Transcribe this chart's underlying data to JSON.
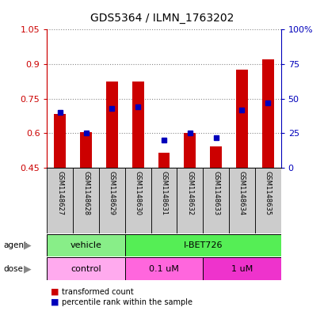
{
  "title": "GDS5364 / ILMN_1763202",
  "samples": [
    "GSM1148627",
    "GSM1148628",
    "GSM1148629",
    "GSM1148630",
    "GSM1148631",
    "GSM1148632",
    "GSM1148633",
    "GSM1148634",
    "GSM1148635"
  ],
  "transformed_count": [
    0.685,
    0.605,
    0.825,
    0.825,
    0.515,
    0.6,
    0.545,
    0.875,
    0.92
  ],
  "baseline": 0.45,
  "percentile_rank_norm": [
    0.4,
    0.25,
    0.43,
    0.44,
    0.2,
    0.25,
    0.22,
    0.42,
    0.47
  ],
  "ylim_left": [
    0.45,
    1.05
  ],
  "ylim_right": [
    0.0,
    1.0
  ],
  "yticks_left": [
    0.45,
    0.6,
    0.75,
    0.9,
    1.05
  ],
  "ytick_labels_left": [
    "0.45",
    "0.6",
    "0.75",
    "0.9",
    "1.05"
  ],
  "yticks_right": [
    0.0,
    0.25,
    0.5,
    0.75,
    1.0
  ],
  "ytick_labels_right": [
    "0",
    "25",
    "50",
    "75",
    "100%"
  ],
  "bar_color": "#cc0000",
  "percentile_color": "#0000bb",
  "agent_groups": [
    {
      "label": "vehicle",
      "start": 0,
      "end": 3,
      "color": "#88ee88"
    },
    {
      "label": "I-BET726",
      "start": 3,
      "end": 9,
      "color": "#55ee55"
    }
  ],
  "dose_groups": [
    {
      "label": "control",
      "start": 0,
      "end": 3,
      "color": "#ffaaee"
    },
    {
      "label": "0.1 uM",
      "start": 3,
      "end": 6,
      "color": "#ff66dd"
    },
    {
      "label": "1 uM",
      "start": 6,
      "end": 9,
      "color": "#ee33cc"
    }
  ],
  "legend_items": [
    {
      "label": "transformed count",
      "color": "#cc0000"
    },
    {
      "label": "percentile rank within the sample",
      "color": "#0000bb"
    }
  ],
  "left_axis_color": "#cc0000",
  "right_axis_color": "#0000bb",
  "grid_color": "#888888",
  "bar_width": 0.45
}
